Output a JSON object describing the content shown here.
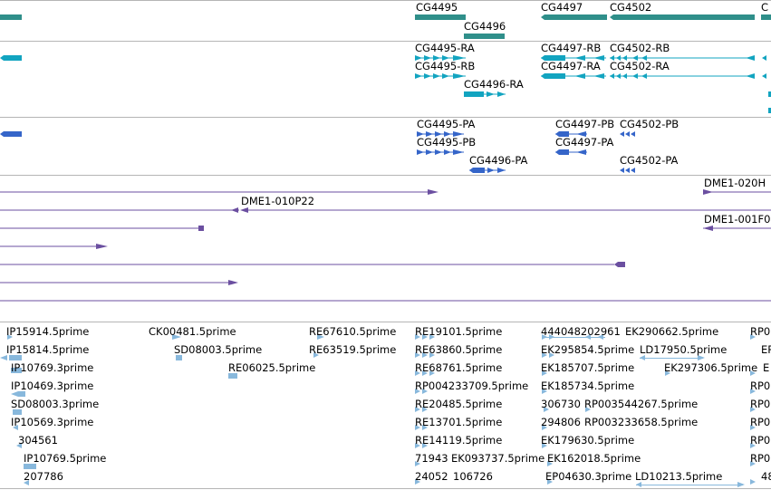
{
  "tracks": {
    "genes": {
      "labels": [
        "CG4495",
        "CG4496",
        "CG4497",
        "CG4502"
      ],
      "color": "#2f8f8a"
    },
    "transcripts": {
      "labels": [
        "CG4495-RA",
        "CG4495-RB",
        "CG4496-RA",
        "CG4497-RB",
        "CG4497-RA",
        "CG4502-RB",
        "CG4502-RA"
      ],
      "color": "#12a4c0"
    },
    "proteins": {
      "labels": [
        "CG4495-PA",
        "CG4495-PB",
        "CG4496-PA",
        "CG4497-PB",
        "CG4502-PB",
        "CG4497-PA",
        "CG4502-PA"
      ],
      "color": "#3565c9"
    },
    "clones": {
      "labels": [
        "DME1-020H",
        "DME1-010P22",
        "DME1-001F0"
      ],
      "color": "#6b4fa0"
    },
    "ests": {
      "color": "#88b8dc",
      "rows": [
        [
          "IP15914.5prime",
          "CK00481.5prime",
          "RE67610.5prime",
          "RE19101.5prime",
          "444048202961",
          "EK290662.5prime",
          "RP0"
        ],
        [
          "IP15814.5prime",
          "SD08003.5prime",
          "RE63519.5prime",
          "RE63860.5prime",
          "EK295854.5prime",
          "LD17950.5prime",
          "EP"
        ],
        [
          "IP10769.3prime",
          "RE06025.5prime",
          "RE68761.5prime",
          "EK185707.5prime",
          "EK297306.5prime",
          "E"
        ],
        [
          "IP10469.3prime",
          "RP004233709.5prime",
          "EK185734.5prime",
          "RP0"
        ],
        [
          "SD08003.3prime",
          "RE20485.5prime",
          "306730",
          "RP003544267.5prime",
          "RP0"
        ],
        [
          "IP10569.3prime",
          "RE13701.5prime",
          "294806",
          "RP003233658.5prime",
          "RP0"
        ],
        [
          "304561",
          "RE14119.5prime",
          "EK179630.5prime",
          "RP0"
        ],
        [
          "IP10769.5prime",
          "71943",
          "EK093737.5prime",
          "EK162018.5prime",
          "RP0"
        ],
        [
          "207786",
          "24052",
          "106726",
          "EP04630.3prime",
          "LD10213.5prime",
          "48"
        ]
      ]
    }
  }
}
